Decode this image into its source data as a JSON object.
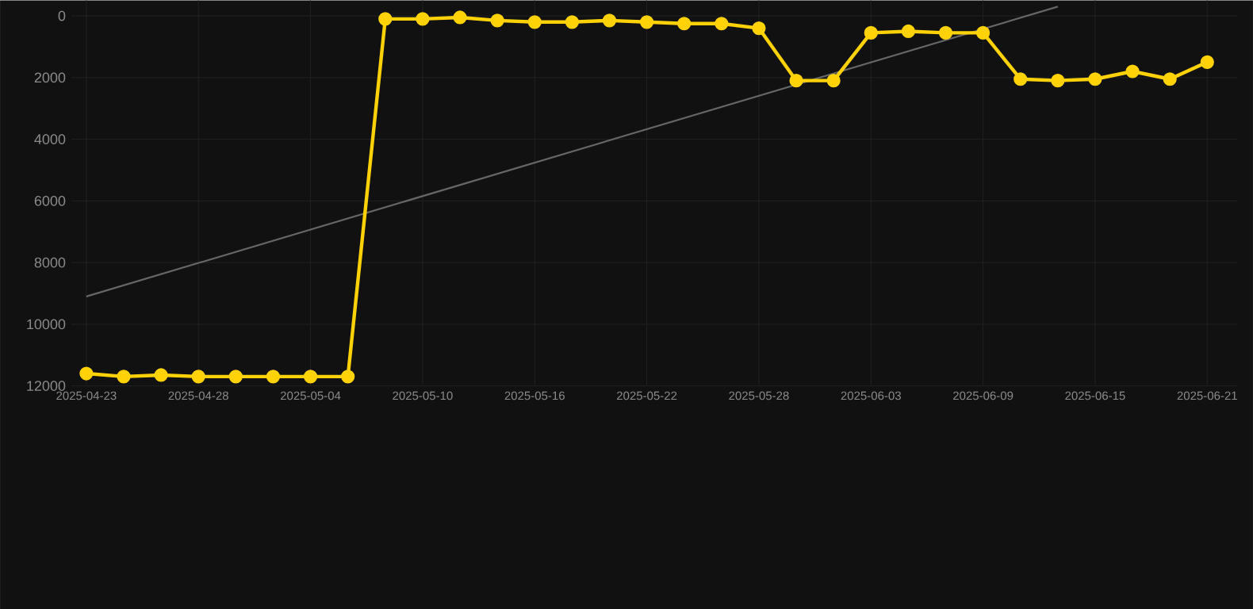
{
  "chart_data": {
    "type": "line",
    "categories": [
      "2025-04-23",
      null,
      null,
      "2025-04-28",
      null,
      null,
      "2025-05-04",
      null,
      null,
      "2025-05-10",
      null,
      null,
      "2025-05-16",
      null,
      null,
      "2025-05-22",
      null,
      null,
      "2025-05-28",
      null,
      null,
      "2025-06-03",
      null,
      null,
      "2025-06-09",
      null,
      null,
      "2025-06-15",
      null,
      null,
      "2025-06-21"
    ],
    "series": [
      {
        "color": "#ffd208",
        "marker": "circle",
        "values": [
          11600,
          11700,
          11650,
          11700,
          11700,
          11700,
          11700,
          11700,
          100,
          100,
          50,
          150,
          200,
          200,
          150,
          200,
          250,
          250,
          400,
          2100,
          2100,
          550,
          500,
          550,
          550,
          2050,
          2100,
          2050,
          1800,
          2050,
          1500
        ]
      },
      {
        "type": "line",
        "color": "#666666",
        "marker": "none",
        "values": [
          9100,
          null,
          null,
          null,
          null,
          null,
          null,
          null,
          null,
          null,
          null,
          null,
          null,
          null,
          null,
          null,
          null,
          null,
          null,
          null,
          null,
          null,
          null,
          null,
          null,
          null,
          -300,
          null,
          null,
          null,
          null
        ]
      }
    ],
    "ylim": [
      12000,
      -500
    ],
    "yticks": [
      0,
      2000,
      4000,
      6000,
      8000,
      10000,
      12000
    ],
    "grid": true
  }
}
